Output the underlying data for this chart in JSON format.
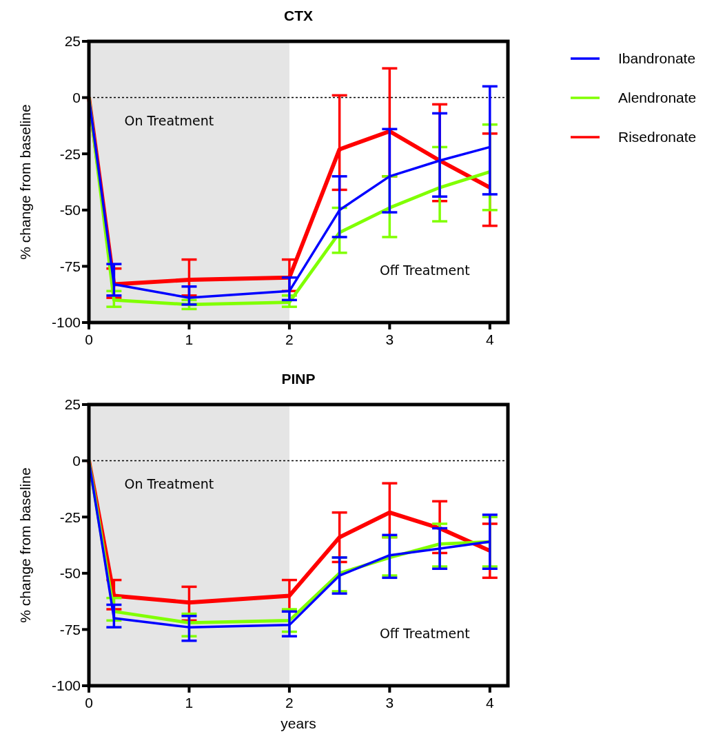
{
  "chart_data": [
    {
      "type": "line",
      "title": "CTX",
      "ylabel": "% change from baseline",
      "x": [
        0,
        0.25,
        1,
        2,
        2.5,
        3,
        3.5,
        4
      ],
      "xlim": [
        0,
        4.18
      ],
      "xticks": [
        0,
        1,
        2,
        3,
        4
      ],
      "ylim": [
        -100,
        25
      ],
      "yticks": [
        25,
        0,
        -25,
        -50,
        -75,
        -100
      ],
      "legend": "top right",
      "annotations": [
        "On Treatment",
        "Off Treatment"
      ],
      "bands": [
        {
          "axis": "x",
          "from": 0,
          "to": 2,
          "color": "#e5e5e5"
        }
      ],
      "ref_lines": [
        {
          "axis": "y",
          "value": 0,
          "line_style": "dotted",
          "color": "#000000"
        }
      ],
      "series": [
        {
          "name": "Ibandronate",
          "color": "#0000ff",
          "values": [
            0,
            -83,
            -89,
            -86,
            -50,
            -35,
            -28,
            -22
          ],
          "errors": [
            null,
            [
              -88,
              -74
            ],
            [
              -92,
              -84
            ],
            [
              -90,
              -80
            ],
            [
              -62,
              -35
            ],
            [
              -51,
              -14
            ],
            [
              -44,
              -7
            ],
            [
              -43,
              5
            ]
          ]
        },
        {
          "name": "Alendronate",
          "color": "#80ff00",
          "values": [
            0,
            -90,
            -92,
            -91,
            -60,
            -49,
            -40,
            -33
          ],
          "errors": [
            null,
            [
              -93,
              -86
            ],
            [
              -94,
              -90
            ],
            [
              -93,
              -88
            ],
            [
              -69,
              -49
            ],
            [
              -62,
              -35
            ],
            [
              -55,
              -22
            ],
            [
              -50,
              -12
            ]
          ]
        },
        {
          "name": "Risedronate",
          "color": "#ff0000",
          "values": [
            0,
            -83,
            -81,
            -80,
            -23,
            -15,
            -28,
            -40
          ],
          "errors": [
            null,
            [
              -89,
              -76
            ],
            [
              -88,
              -72
            ],
            [
              -86,
              -72
            ],
            [
              -41,
              1
            ],
            [
              -35,
              13
            ],
            [
              -46,
              -3
            ],
            [
              -57,
              -16
            ]
          ]
        }
      ]
    },
    {
      "type": "line",
      "title": "PINP",
      "xlabel": "years",
      "ylabel": "% change from baseline",
      "x": [
        0,
        0.25,
        1,
        2,
        2.5,
        3,
        3.5,
        4
      ],
      "xlim": [
        0,
        4.18
      ],
      "xticks": [
        0,
        1,
        2,
        3,
        4
      ],
      "ylim": [
        -100,
        25
      ],
      "yticks": [
        25,
        0,
        -25,
        -50,
        -75,
        -100
      ],
      "annotations": [
        "On Treatment",
        "Off Treatment"
      ],
      "bands": [
        {
          "axis": "x",
          "from": 0,
          "to": 2,
          "color": "#e5e5e5"
        }
      ],
      "ref_lines": [
        {
          "axis": "y",
          "value": 0,
          "line_style": "dotted",
          "color": "#000000"
        }
      ],
      "series": [
        {
          "color": "#0000ff",
          "values": [
            0,
            -70,
            -74,
            -73,
            -51,
            -42,
            -39,
            -36
          ],
          "errors": [
            null,
            [
              -74,
              -64
            ],
            [
              -80,
              -69
            ],
            [
              -78,
              -67
            ],
            [
              -59,
              -43
            ],
            [
              -52,
              -33
            ],
            [
              -48,
              -30
            ],
            [
              -48,
              -24
            ]
          ]
        },
        {
          "color": "#80ff00",
          "values": [
            0,
            -67,
            -72,
            -71,
            -50,
            -43,
            -37,
            -36
          ],
          "errors": [
            null,
            [
              -71,
              -61
            ],
            [
              -78,
              -68
            ],
            [
              -76,
              -66
            ],
            [
              -58,
              -43
            ],
            [
              -51,
              -34
            ],
            [
              -47,
              -28
            ],
            [
              -47,
              -25
            ]
          ]
        },
        {
          "color": "#ff0000",
          "values": [
            0,
            -60,
            -63,
            -60,
            -34,
            -23,
            -30,
            -40
          ],
          "errors": [
            null,
            [
              -66,
              -53
            ],
            [
              -71,
              -56
            ],
            [
              -67,
              -53
            ],
            [
              -45,
              -23
            ],
            [
              -34,
              -10
            ],
            [
              -41,
              -18
            ],
            [
              -52,
              -28
            ]
          ]
        }
      ]
    }
  ]
}
